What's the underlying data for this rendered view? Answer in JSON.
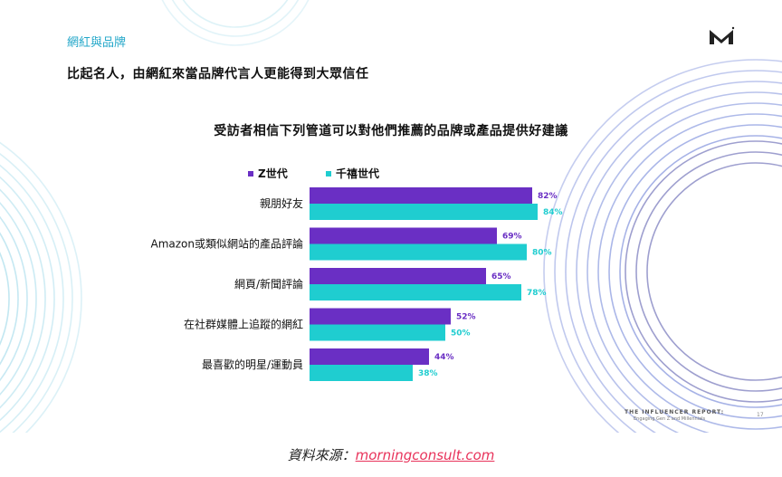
{
  "slide": {
    "section_title": "網紅與品牌",
    "headline": "比起名人，由網紅來當品牌代言人更能得到大眾信任",
    "footer_brand": "THE INFLUENCER REPORT:",
    "footer_sub": "Engaging Gen Z and Millennials",
    "page_number": "17"
  },
  "source": {
    "label": "資料來源：",
    "link_text": "morningconsult.com"
  },
  "colors": {
    "gen_z": "#6a2fc4",
    "millennials": "#1fcdd0",
    "accent": "#23a7c9",
    "link": "#e8325a"
  },
  "chart_data": {
    "type": "bar",
    "orientation": "horizontal",
    "title": "受訪者相信下列管道可以對他們推薦的品牌或產品提供好建議",
    "legend_position": "top",
    "categories": [
      "親朋好友",
      "Amazon或類似網站的產品評論",
      "網頁/新聞評論",
      "在社群媒體上追蹤的網紅",
      "最喜歡的明星/運動員"
    ],
    "series": [
      {
        "name": "Z世代",
        "values": [
          82,
          69,
          65,
          52,
          44
        ],
        "labels": [
          "82%",
          "69%",
          "65%",
          "52%",
          "44%"
        ]
      },
      {
        "name": "千禧世代",
        "values": [
          84,
          80,
          78,
          50,
          38
        ],
        "labels": [
          "84%",
          "80%",
          "78%",
          "50%",
          "38%"
        ]
      }
    ],
    "xlim": [
      0,
      100
    ],
    "grid": false
  }
}
